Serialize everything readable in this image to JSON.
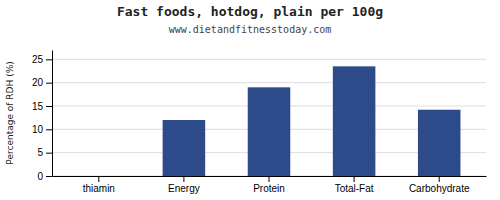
{
  "chart_data": {
    "type": "bar",
    "title": "Fast foods, hotdog, plain per 100g",
    "subtitle": "www.dietandfitnesstoday.com",
    "categories": [
      "thiamin",
      "Energy",
      "Protein",
      "Total-Fat",
      "Carbohydrate"
    ],
    "values": [
      0,
      12,
      19,
      23.5,
      14.2
    ],
    "color": "#2d4a8a",
    "ylabel": "Percentage of RDH (%)",
    "ylim": [
      0,
      27
    ],
    "yticks": [
      0,
      5,
      10,
      15,
      20,
      25
    ],
    "grid": true
  }
}
